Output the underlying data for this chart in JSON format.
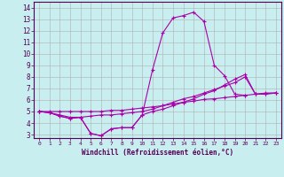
{
  "xlabel": "Windchill (Refroidissement éolien,°C)",
  "bg_color": "#c8eef0",
  "grid_color": "#b0b0b0",
  "line_color": "#aa00aa",
  "x_ticks": [
    0,
    1,
    2,
    3,
    4,
    5,
    6,
    7,
    8,
    9,
    10,
    11,
    12,
    13,
    14,
    15,
    16,
    17,
    18,
    19,
    20,
    21,
    22,
    23
  ],
  "y_ticks": [
    3,
    4,
    5,
    6,
    7,
    8,
    9,
    10,
    11,
    12,
    13,
    14
  ],
  "ylim": [
    2.7,
    14.5
  ],
  "xlim": [
    -0.5,
    23.5
  ],
  "line1_x": [
    0,
    1,
    2,
    3,
    4,
    5,
    6,
    7,
    8,
    9,
    10,
    11,
    12,
    13,
    14,
    15,
    16,
    17,
    18,
    19,
    20
  ],
  "line1_y": [
    5.0,
    4.9,
    4.6,
    4.4,
    4.5,
    3.1,
    2.9,
    3.5,
    3.6,
    3.6,
    4.7,
    8.6,
    11.8,
    13.1,
    13.3,
    13.6,
    12.8,
    9.0,
    8.1,
    6.5,
    6.4
  ],
  "line2_x": [
    0,
    1,
    2,
    3,
    4,
    5,
    6,
    7,
    8,
    9,
    10,
    11,
    12,
    13,
    14,
    15,
    16,
    17,
    18,
    19,
    20,
    21,
    22,
    23
  ],
  "line2_y": [
    5.0,
    4.9,
    4.7,
    4.5,
    4.5,
    4.6,
    4.7,
    4.7,
    4.8,
    4.9,
    5.0,
    5.2,
    5.5,
    5.8,
    6.1,
    6.3,
    6.6,
    6.9,
    7.2,
    7.5,
    8.0,
    6.5,
    6.5,
    6.6
  ],
  "line3_x": [
    0,
    1,
    2,
    3,
    4,
    5,
    6,
    7,
    8,
    9,
    10,
    11,
    12,
    13,
    14,
    15,
    16,
    17,
    18,
    19,
    20,
    21,
    22,
    23
  ],
  "line3_y": [
    5.0,
    5.0,
    5.0,
    5.0,
    5.0,
    5.0,
    5.0,
    5.1,
    5.1,
    5.2,
    5.3,
    5.4,
    5.5,
    5.65,
    5.8,
    5.9,
    6.05,
    6.1,
    6.2,
    6.3,
    6.4,
    6.5,
    6.6,
    6.6
  ],
  "line4_x": [
    0,
    1,
    2,
    3,
    4,
    5,
    6,
    7,
    8,
    9,
    10,
    11,
    12,
    13,
    14,
    15,
    16,
    17,
    18,
    19,
    20,
    21,
    22,
    23
  ],
  "line4_y": [
    5.0,
    4.9,
    4.6,
    4.4,
    4.5,
    3.1,
    2.9,
    3.5,
    3.6,
    3.6,
    4.7,
    5.0,
    5.2,
    5.5,
    5.8,
    6.1,
    6.5,
    6.8,
    7.3,
    7.8,
    8.2,
    6.5,
    6.55,
    6.6
  ]
}
